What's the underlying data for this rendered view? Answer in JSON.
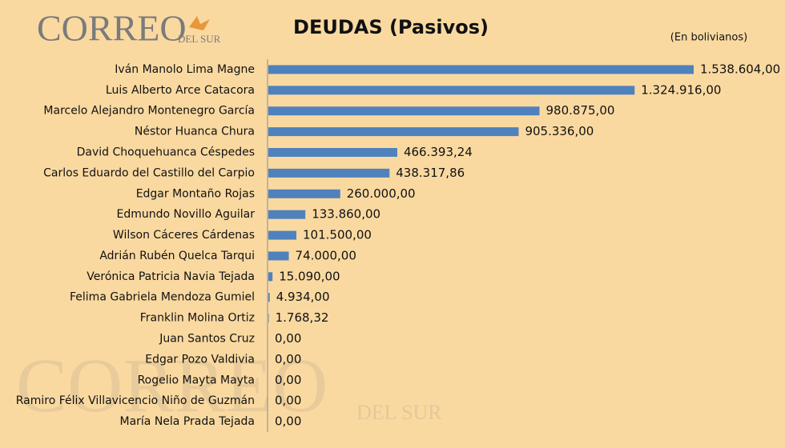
{
  "logo": {
    "main": "CORREO",
    "sub": "DEL SUR"
  },
  "chart_data": {
    "type": "bar",
    "orientation": "horizontal",
    "title": "DEUDAS (Pasivos)",
    "subtitle": "(En bolivianos)",
    "color": "#4f81bd",
    "categories": [
      "Iván Manolo Lima Magne",
      "Luis Alberto Arce Catacora",
      "Marcelo Alejandro Montenegro García",
      "Néstor Huanca Chura",
      "David Choquehuanca Céspedes",
      "Carlos Eduardo del Castillo del Carpio",
      "Edgar Montaño Rojas",
      "Edmundo Novillo Aguilar",
      "Wilson Cáceres Cárdenas",
      "Adrián Rubén Quelca Tarqui",
      "Verónica Patricia Navia Tejada",
      "Felima Gabriela Mendoza Gumiel",
      "Franklin Molina Ortiz",
      "Juan Santos Cruz",
      "Edgar Pozo Valdivia",
      "Rogelio Mayta Mayta",
      "Ramiro Félix Villavicencio Niño de Guzmán",
      "María Nela Prada Tejada"
    ],
    "values": [
      1538604,
      1324916,
      980875,
      905336,
      466393.24,
      438317.86,
      260000,
      133860,
      101500,
      74000,
      15090,
      4934,
      1768.32,
      0,
      0,
      0,
      0,
      0
    ],
    "value_labels": [
      "1.538.604,00",
      "1.324.916,00",
      "980.875,00",
      "905.336,00",
      "466.393,24",
      "438.317,86",
      "260.000,00",
      "133.860,00",
      "101.500,00",
      "74.000,00",
      "15.090,00",
      "4.934,00",
      "1.768,32",
      "0,00",
      "0,00",
      "0,00",
      "0,00",
      "0,00"
    ]
  }
}
